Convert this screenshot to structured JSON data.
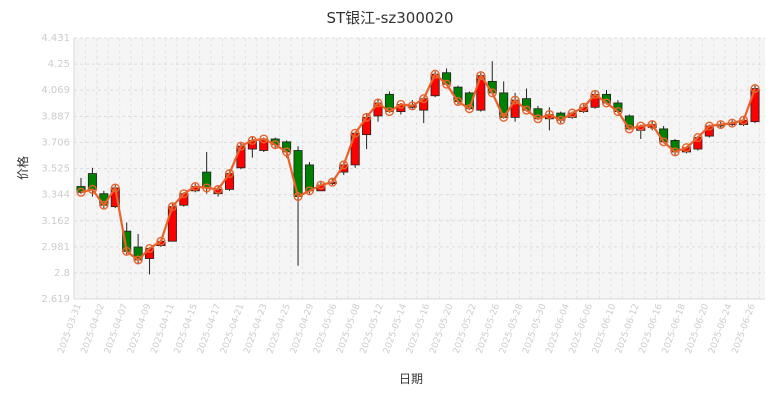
{
  "chart_data": {
    "type": "candlestick",
    "title": "ST银江-sz300020",
    "xlabel": "日期",
    "ylabel": "价格",
    "ylim": [
      2.619,
      4.431
    ],
    "yticks": [
      "2.619",
      "2.8",
      "2.981",
      "3.162",
      "3.344",
      "3.525",
      "3.706",
      "3.887",
      "4.069",
      "4.25",
      "4.431"
    ],
    "xticks": [
      "2025-03-31",
      "2025-04-02",
      "2025-04-07",
      "2025-04-09",
      "2025-04-11",
      "2025-04-15",
      "2025-04-17",
      "2025-04-21",
      "2025-04-23",
      "2025-04-25",
      "2025-04-29",
      "2025-05-06",
      "2025-05-08",
      "2025-05-12",
      "2025-05-14",
      "2025-05-16",
      "2025-05-20",
      "2025-05-22",
      "2025-05-26",
      "2025-05-28",
      "2025-05-30",
      "2025-06-04",
      "2025-06-06",
      "2025-06-10",
      "2025-06-12",
      "2025-06-16",
      "2025-06-18",
      "2025-06-20",
      "2025-06-24",
      "2025-06-26"
    ],
    "grid": true,
    "up_color": "#ff0000",
    "down_color": "#008000",
    "line_color": "#e8632a",
    "candles": [
      {
        "o": 3.4,
        "c": 3.36,
        "h": 3.46,
        "l": 3.35
      },
      {
        "o": 3.49,
        "c": 3.38,
        "h": 3.53,
        "l": 3.33
      },
      {
        "o": 3.35,
        "c": 3.27,
        "h": 3.37,
        "l": 3.25
      },
      {
        "o": 3.26,
        "c": 3.39,
        "h": 3.41,
        "l": 3.25
      },
      {
        "o": 3.09,
        "c": 2.95,
        "h": 3.15,
        "l": 2.93
      },
      {
        "o": 2.98,
        "c": 2.89,
        "h": 3.07,
        "l": 2.86
      },
      {
        "o": 2.9,
        "c": 2.97,
        "h": 2.98,
        "l": 2.79
      },
      {
        "o": 2.99,
        "c": 3.02,
        "h": 3.03,
        "l": 2.98
      },
      {
        "o": 3.02,
        "c": 3.26,
        "h": 3.28,
        "l": 3.02
      },
      {
        "o": 3.27,
        "c": 3.35,
        "h": 3.36,
        "l": 3.26
      },
      {
        "o": 3.37,
        "c": 3.4,
        "h": 3.42,
        "l": 3.36
      },
      {
        "o": 3.5,
        "c": 3.39,
        "h": 3.64,
        "l": 3.35
      },
      {
        "o": 3.35,
        "c": 3.38,
        "h": 3.4,
        "l": 3.33
      },
      {
        "o": 3.38,
        "c": 3.49,
        "h": 3.51,
        "l": 3.37
      },
      {
        "o": 3.53,
        "c": 3.68,
        "h": 3.71,
        "l": 3.52
      },
      {
        "o": 3.66,
        "c": 3.72,
        "h": 3.75,
        "l": 3.6
      },
      {
        "o": 3.65,
        "c": 3.73,
        "h": 3.74,
        "l": 3.64
      },
      {
        "o": 3.73,
        "c": 3.69,
        "h": 3.74,
        "l": 3.67
      },
      {
        "o": 3.71,
        "c": 3.64,
        "h": 3.72,
        "l": 3.6
      },
      {
        "o": 3.65,
        "c": 3.33,
        "h": 3.68,
        "l": 2.85
      },
      {
        "o": 3.55,
        "c": 3.37,
        "h": 3.57,
        "l": 3.35
      },
      {
        "o": 3.37,
        "c": 3.41,
        "h": 3.43,
        "l": 3.37
      },
      {
        "o": 3.42,
        "c": 3.43,
        "h": 3.46,
        "l": 3.41
      },
      {
        "o": 3.5,
        "c": 3.55,
        "h": 3.57,
        "l": 3.48
      },
      {
        "o": 3.55,
        "c": 3.77,
        "h": 3.78,
        "l": 3.53
      },
      {
        "o": 3.76,
        "c": 3.88,
        "h": 3.9,
        "l": 3.66
      },
      {
        "o": 3.89,
        "c": 3.98,
        "h": 4.01,
        "l": 3.85
      },
      {
        "o": 4.04,
        "c": 3.92,
        "h": 4.06,
        "l": 3.91
      },
      {
        "o": 3.92,
        "c": 3.97,
        "h": 3.98,
        "l": 3.9
      },
      {
        "o": 3.95,
        "c": 3.96,
        "h": 4.0,
        "l": 3.94
      },
      {
        "o": 3.93,
        "c": 4.01,
        "h": 4.02,
        "l": 3.84
      },
      {
        "o": 4.03,
        "c": 4.18,
        "h": 4.2,
        "l": 4.02
      },
      {
        "o": 4.19,
        "c": 4.11,
        "h": 4.22,
        "l": 4.1
      },
      {
        "o": 4.09,
        "c": 3.99,
        "h": 4.1,
        "l": 3.97
      },
      {
        "o": 4.05,
        "c": 3.94,
        "h": 4.06,
        "l": 3.93
      },
      {
        "o": 3.93,
        "c": 4.17,
        "h": 4.19,
        "l": 3.92
      },
      {
        "o": 4.13,
        "c": 4.05,
        "h": 4.27,
        "l": 4.04
      },
      {
        "o": 4.05,
        "c": 3.88,
        "h": 4.13,
        "l": 3.87
      },
      {
        "o": 3.88,
        "c": 4.0,
        "h": 4.05,
        "l": 3.85
      },
      {
        "o": 4.01,
        "c": 3.93,
        "h": 4.08,
        "l": 3.92
      },
      {
        "o": 3.94,
        "c": 3.87,
        "h": 3.96,
        "l": 3.86
      },
      {
        "o": 3.87,
        "c": 3.9,
        "h": 3.95,
        "l": 3.79
      },
      {
        "o": 3.91,
        "c": 3.86,
        "h": 3.92,
        "l": 3.84
      },
      {
        "o": 3.88,
        "c": 3.91,
        "h": 3.92,
        "l": 3.87
      },
      {
        "o": 3.92,
        "c": 3.95,
        "h": 3.97,
        "l": 3.91
      },
      {
        "o": 3.95,
        "c": 4.04,
        "h": 4.06,
        "l": 3.94
      },
      {
        "o": 4.04,
        "c": 3.98,
        "h": 4.07,
        "l": 3.97
      },
      {
        "o": 3.98,
        "c": 3.92,
        "h": 4.0,
        "l": 3.91
      },
      {
        "o": 3.89,
        "c": 3.8,
        "h": 3.9,
        "l": 3.79
      },
      {
        "o": 3.79,
        "c": 3.82,
        "h": 3.83,
        "l": 3.73
      },
      {
        "o": 3.81,
        "c": 3.83,
        "h": 3.86,
        "l": 3.79
      },
      {
        "o": 3.8,
        "c": 3.71,
        "h": 3.82,
        "l": 3.7
      },
      {
        "o": 3.72,
        "c": 3.64,
        "h": 3.73,
        "l": 3.62
      },
      {
        "o": 3.64,
        "c": 3.67,
        "h": 3.68,
        "l": 3.63
      },
      {
        "o": 3.66,
        "c": 3.74,
        "h": 3.75,
        "l": 3.65
      },
      {
        "o": 3.75,
        "c": 3.82,
        "h": 3.83,
        "l": 3.74
      },
      {
        "o": 3.82,
        "c": 3.83,
        "h": 3.85,
        "l": 3.8
      },
      {
        "o": 3.83,
        "c": 3.84,
        "h": 3.86,
        "l": 3.82
      },
      {
        "o": 3.83,
        "c": 3.86,
        "h": 3.88,
        "l": 3.82
      },
      {
        "o": 3.85,
        "c": 4.08,
        "h": 4.1,
        "l": 3.84
      }
    ]
  }
}
